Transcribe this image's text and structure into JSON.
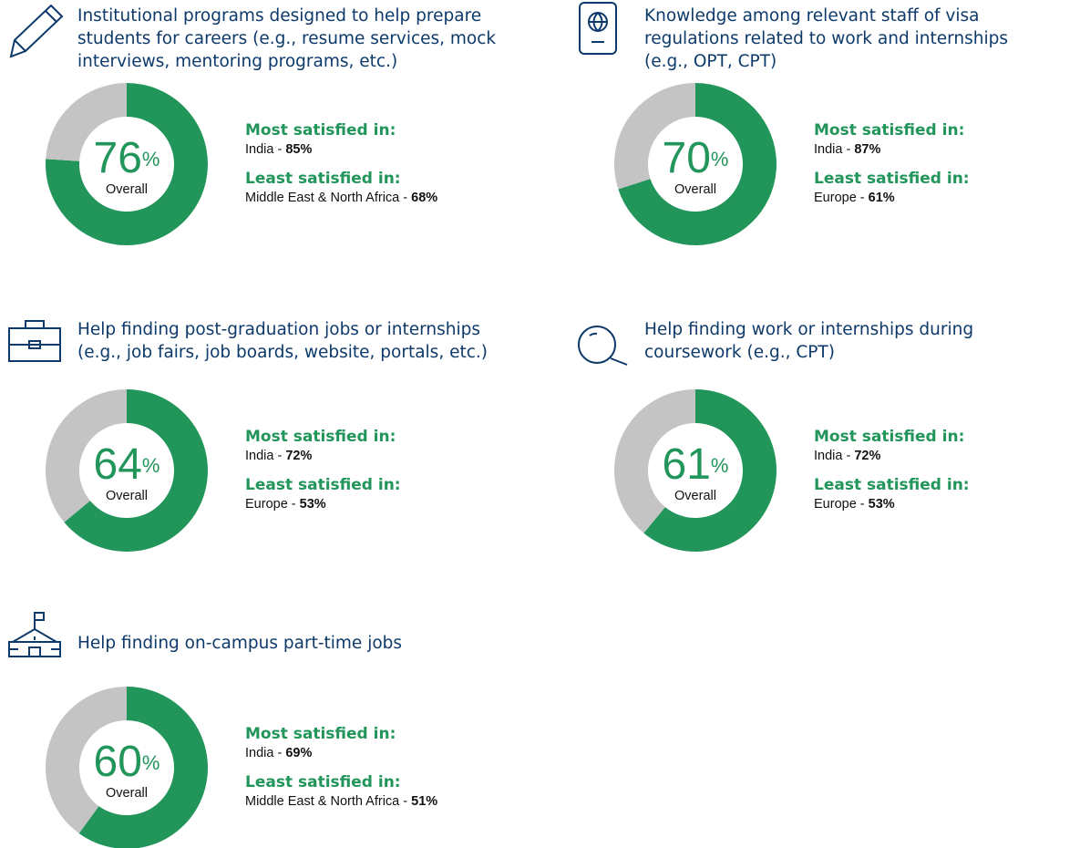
{
  "chart_data": [
    {
      "type": "donut",
      "title": [
        "Institutional programs designed to help prepare",
        "students for careers (e.g., resume services, mock",
        "interviews, mentoring programs, etc.)"
      ],
      "values": [
        76,
        24
      ],
      "colors": [
        "#21955a",
        "#c4c4c4"
      ],
      "unit": "%",
      "center_label": "Overall",
      "most": {
        "heading": "Most satisfied in:",
        "region": "India - ",
        "value_label": "85%"
      },
      "least": {
        "heading": "Least satisfied in:",
        "region": "Middle East & North Africa - ",
        "value_label": "68%"
      }
    },
    {
      "type": "donut",
      "title": [
        "Knowledge among relevant staff of visa",
        "regulations related to work and internships",
        "(e.g., OPT, CPT)"
      ],
      "values": [
        70,
        30
      ],
      "colors": [
        "#21955a",
        "#c4c4c4"
      ],
      "unit": "%",
      "center_label": "Overall",
      "most": {
        "heading": "Most satisfied in:",
        "region": "India - ",
        "value_label": "87%"
      },
      "least": {
        "heading": "Least satisfied in:",
        "region": "Europe - ",
        "value_label": "61%"
      }
    },
    {
      "type": "donut",
      "title": [
        "Help finding post-graduation jobs or internships",
        "(e.g., job fairs, job boards, website, portals, etc.)"
      ],
      "values": [
        64,
        36
      ],
      "colors": [
        "#21955a",
        "#c4c4c4"
      ],
      "unit": "%",
      "center_label": "Overall",
      "most": {
        "heading": "Most satisfied in:",
        "region": "India - ",
        "value_label": "72%"
      },
      "least": {
        "heading": "Least satisfied in:",
        "region": "Europe - ",
        "value_label": "53%"
      }
    },
    {
      "type": "donut",
      "title": [
        "Help finding work or internships during",
        "coursework (e.g., CPT)"
      ],
      "values": [
        61,
        39
      ],
      "colors": [
        "#21955a",
        "#c4c4c4"
      ],
      "unit": "%",
      "center_label": "Overall",
      "most": {
        "heading": "Most satisfied in:",
        "region": "India - ",
        "value_label": "72%"
      },
      "least": {
        "heading": "Least satisfied in:",
        "region": "Europe - ",
        "value_label": "53%"
      }
    },
    {
      "type": "donut",
      "title": [
        "Help finding on-campus part-time jobs"
      ],
      "values": [
        60,
        40
      ],
      "colors": [
        "#21955a",
        "#c4c4c4"
      ],
      "unit": "%",
      "center_label": "Overall",
      "most": {
        "heading": "Most satisfied in:",
        "region": "India - ",
        "value_label": "69%"
      },
      "least": {
        "heading": "Least satisfied in:",
        "region": "Middle East & North Africa - ",
        "value_label": "51%"
      }
    }
  ]
}
